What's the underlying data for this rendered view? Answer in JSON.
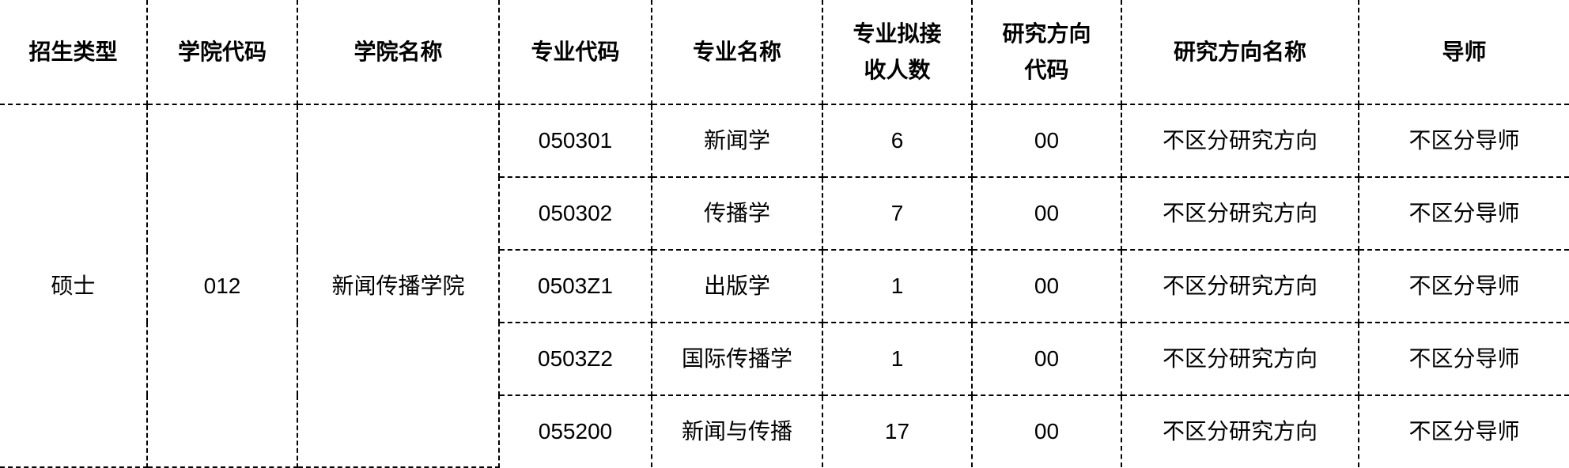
{
  "headers": [
    "招生类型",
    "学院代码",
    "学院名称",
    "专业代码",
    "专业名称",
    "专业拟接收人数",
    "研究方向代码",
    "研究方向名称",
    "导师"
  ],
  "group": {
    "type": "硕士",
    "college_code": "012",
    "college_name": "新闻传播学院"
  },
  "rows": [
    {
      "major_code": "050301",
      "major_name": "新闻学",
      "quota": "6",
      "dir_code": "00",
      "dir_name": "不区分研究方向",
      "advisor": "不区分导师"
    },
    {
      "major_code": "050302",
      "major_name": "传播学",
      "quota": "7",
      "dir_code": "00",
      "dir_name": "不区分研究方向",
      "advisor": "不区分导师"
    },
    {
      "major_code": "0503Z1",
      "major_name": "出版学",
      "quota": "1",
      "dir_code": "00",
      "dir_name": "不区分研究方向",
      "advisor": "不区分导师"
    },
    {
      "major_code": "0503Z2",
      "major_name": "国际传播学",
      "quota": "1",
      "dir_code": "00",
      "dir_name": "不区分研究方向",
      "advisor": "不区分导师"
    },
    {
      "major_code": "055200",
      "major_name": "新闻与传播",
      "quota": "17",
      "dir_code": "00",
      "dir_name": "不区分研究方向",
      "advisor": "不区分导师"
    }
  ]
}
